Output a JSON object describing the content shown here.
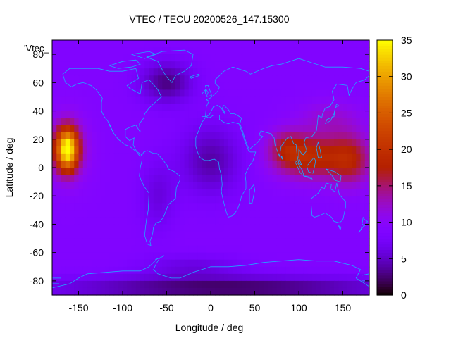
{
  "title": "VTEC / TECU 20200526_147.15300",
  "key_label": "'Vtec_",
  "xlabel": "Longitude / deg",
  "ylabel": "Latitude / deg",
  "chart_data": {
    "type": "heatmap",
    "title": "VTEC / TECU 20200526_147.15300",
    "xlabel": "Longitude / deg",
    "ylabel": "Latitude / deg",
    "xlim": [
      -180,
      180
    ],
    "ylim": [
      -90,
      90
    ],
    "xticks": [
      -150,
      -100,
      -50,
      0,
      50,
      100,
      150
    ],
    "yticks": [
      -80,
      -60,
      -40,
      -20,
      0,
      20,
      40,
      60,
      80
    ],
    "colorbar": {
      "min": 0,
      "max": 35,
      "ticks": [
        0,
        5,
        10,
        15,
        20,
        25,
        30,
        35
      ],
      "palette": "black-purple-red-orange-yellow"
    },
    "background_level": 9,
    "features": [
      {
        "lon": -163,
        "lat": 13,
        "sx": 12,
        "sy": 14,
        "amp": 22
      },
      {
        "lon": -163,
        "lat": 13,
        "sx": 22,
        "sy": 22,
        "amp": 6
      },
      {
        "lon": 110,
        "lat": 8,
        "sx": 38,
        "sy": 15,
        "amp": 10
      },
      {
        "lon": 158,
        "lat": 6,
        "sx": 25,
        "sy": 18,
        "amp": 8
      },
      {
        "lon": 85,
        "lat": 15,
        "sx": 20,
        "sy": 12,
        "amp": 4
      },
      {
        "lon": 135,
        "lat": 35,
        "sx": 35,
        "sy": 12,
        "amp": 3
      },
      {
        "lon": -50,
        "lat": 60,
        "sx": 30,
        "sy": 15,
        "amp": -6
      },
      {
        "lon": 0,
        "lat": 5,
        "sx": 35,
        "sy": 25,
        "amp": -5
      },
      {
        "lon": -60,
        "lat": -20,
        "sx": 20,
        "sy": 25,
        "amp": -3
      },
      {
        "lon": 20,
        "lat": -85,
        "sx": 200,
        "sy": 8,
        "amp": -7
      },
      {
        "lon": -20,
        "lat": -70,
        "sx": 60,
        "sy": 8,
        "amp": -3
      }
    ]
  }
}
